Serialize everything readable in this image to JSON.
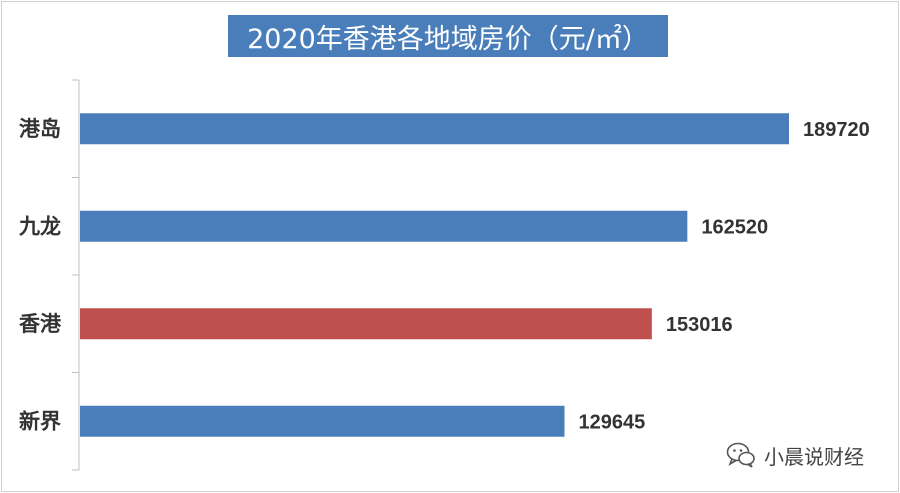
{
  "title": "2020年香港各地域房价（元/㎡）",
  "watermark": "小晨说财经",
  "colors": {
    "title_bg": "#4a7ebb",
    "bar_default": "#4a7ebb",
    "bar_highlight": "#c0504d",
    "axis": "#c0c0c0"
  },
  "chart_data": {
    "type": "bar",
    "orientation": "horizontal",
    "title": "2020年香港各地域房价（元/㎡）",
    "categories": [
      "港岛",
      "九龙",
      "香港",
      "新界"
    ],
    "values": [
      189720,
      162520,
      153016,
      129645
    ],
    "highlight": [
      "香港"
    ],
    "xlim": [
      0,
      189720
    ],
    "grid": false,
    "legend": "none",
    "data_labels": true
  }
}
